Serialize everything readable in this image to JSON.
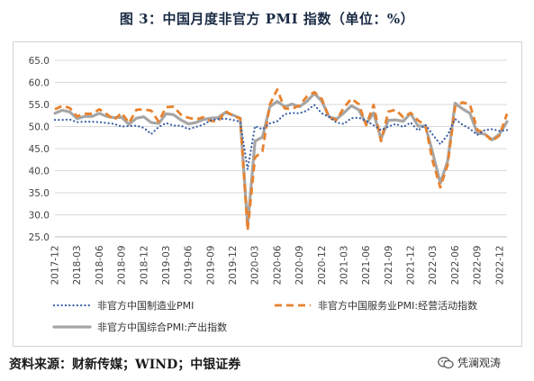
{
  "title": "图 3：中国月度非官方 PMI 指数（单位：%）",
  "source": "资料来源：财新传媒；WIND；中银证券",
  "watermark": {
    "text": "凭澜观涛",
    "icon": "wechat-logo-icon"
  },
  "chart_data": {
    "type": "line",
    "title": "图 3：中国月度非官方 PMI 指数（单位：%）",
    "xlabel": "",
    "ylabel": "",
    "ylim": [
      25.0,
      65.0
    ],
    "yticks": [
      "25.0",
      "30.0",
      "35.0",
      "40.0",
      "45.0",
      "50.0",
      "55.0",
      "60.0",
      "65.0"
    ],
    "ytick_values": [
      25,
      30,
      35,
      40,
      45,
      50,
      55,
      60,
      65
    ],
    "grid": "horizontal",
    "legend_position": "bottom",
    "x": [
      "2017-12",
      "2018-01",
      "2018-02",
      "2018-03",
      "2018-04",
      "2018-05",
      "2018-06",
      "2018-07",
      "2018-08",
      "2018-09",
      "2018-10",
      "2018-11",
      "2018-12",
      "2019-01",
      "2019-02",
      "2019-03",
      "2019-04",
      "2019-05",
      "2019-06",
      "2019-07",
      "2019-08",
      "2019-09",
      "2019-10",
      "2019-11",
      "2019-12",
      "2020-01",
      "2020-02",
      "2020-03",
      "2020-04",
      "2020-05",
      "2020-06",
      "2020-07",
      "2020-08",
      "2020-09",
      "2020-10",
      "2020-11",
      "2020-12",
      "2021-01",
      "2021-02",
      "2021-03",
      "2021-04",
      "2021-05",
      "2021-06",
      "2021-07",
      "2021-08",
      "2021-09",
      "2021-10",
      "2021-11",
      "2021-12",
      "2022-01",
      "2022-02",
      "2022-03",
      "2022-04",
      "2022-05",
      "2022-06",
      "2022-07",
      "2022-08",
      "2022-09",
      "2022-10",
      "2022-11",
      "2022-12",
      "2023-01"
    ],
    "xticks": [
      "2017-12",
      "2018-03",
      "2018-06",
      "2018-09",
      "2018-12",
      "2019-03",
      "2019-06",
      "2019-09",
      "2019-12",
      "2020-03",
      "2020-06",
      "2020-09",
      "2020-12",
      "2021-03",
      "2021-06",
      "2021-09",
      "2021-12",
      "2022-03",
      "2022-06",
      "2022-09",
      "2022-12"
    ],
    "series": [
      {
        "name": "非官方中国制造业PMI",
        "color": "#3a5fa8",
        "style": "dotted",
        "values": [
          51.5,
          51.5,
          51.6,
          51.0,
          51.1,
          51.1,
          51.0,
          50.8,
          50.6,
          50.0,
          50.1,
          50.2,
          49.7,
          48.3,
          49.9,
          50.8,
          50.2,
          50.2,
          49.4,
          49.9,
          50.4,
          51.4,
          51.7,
          51.8,
          51.5,
          51.1,
          40.3,
          50.1,
          49.4,
          50.7,
          51.2,
          52.8,
          53.1,
          53.0,
          53.6,
          54.9,
          53.0,
          52.2,
          50.9,
          50.6,
          51.9,
          52.0,
          51.3,
          50.3,
          49.2,
          50.0,
          50.6,
          49.9,
          50.9,
          49.1,
          50.4,
          48.1,
          46.0,
          48.1,
          51.7,
          50.4,
          49.5,
          48.1,
          49.2,
          49.4,
          49.0,
          49.2
        ]
      },
      {
        "name": "非官方中国服务业PMI:经营活动指数",
        "color": "#e8822e",
        "style": "dashed",
        "values": [
          53.9,
          54.7,
          54.2,
          52.3,
          52.9,
          52.9,
          53.9,
          52.8,
          51.5,
          53.1,
          50.8,
          53.8,
          53.9,
          53.6,
          51.1,
          54.4,
          54.5,
          52.7,
          52.0,
          51.6,
          52.1,
          51.3,
          51.1,
          53.5,
          52.5,
          51.8,
          26.5,
          43.0,
          44.4,
          55.0,
          58.4,
          54.1,
          54.0,
          54.8,
          56.8,
          57.8,
          56.3,
          52.0,
          51.5,
          54.3,
          56.3,
          55.1,
          50.3,
          54.9,
          46.7,
          53.4,
          53.8,
          52.1,
          53.1,
          51.4,
          50.2,
          42.0,
          36.2,
          41.4,
          54.5,
          55.5,
          55.0,
          49.3,
          48.4,
          46.7,
          48.0,
          52.9
        ]
      },
      {
        "name": "非官方中国综合PMI:产出指数",
        "color": "#a6a6a6",
        "style": "solid",
        "values": [
          53.0,
          53.7,
          53.3,
          51.8,
          52.3,
          52.3,
          53.0,
          52.3,
          52.0,
          52.1,
          50.5,
          51.9,
          52.2,
          50.9,
          50.7,
          52.9,
          52.7,
          51.5,
          50.6,
          50.9,
          51.6,
          51.9,
          52.0,
          53.2,
          52.6,
          51.9,
          27.5,
          46.7,
          47.6,
          54.5,
          55.7,
          54.5,
          55.1,
          54.5,
          55.7,
          57.5,
          55.8,
          52.2,
          51.7,
          53.1,
          54.7,
          53.8,
          50.6,
          53.1,
          47.2,
          51.4,
          51.5,
          51.2,
          53.0,
          50.1,
          50.1,
          43.9,
          37.2,
          42.2,
          55.3,
          54.0,
          53.0,
          48.5,
          48.3,
          47.0,
          48.3,
          51.1
        ]
      }
    ]
  }
}
